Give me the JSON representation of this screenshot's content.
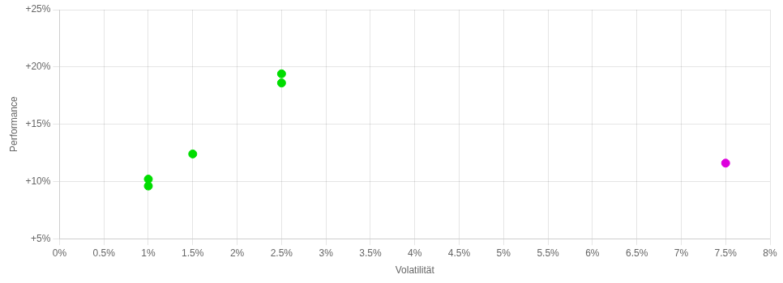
{
  "chart_data": {
    "type": "scatter",
    "x_label": "Volatilität",
    "y_label": "Performance",
    "xlim": [
      0.0,
      0.08
    ],
    "ylim": [
      0.05,
      0.25
    ],
    "xticks": [
      {
        "value": 0.0,
        "label": "0%"
      },
      {
        "value": 0.005,
        "label": "0.5%"
      },
      {
        "value": 0.01,
        "label": "1%"
      },
      {
        "value": 0.015,
        "label": "1.5%"
      },
      {
        "value": 0.02,
        "label": "2%"
      },
      {
        "value": 0.025,
        "label": "2.5%"
      },
      {
        "value": 0.03,
        "label": "3%"
      },
      {
        "value": 0.035,
        "label": "3.5%"
      },
      {
        "value": 0.04,
        "label": "4%"
      },
      {
        "value": 0.045,
        "label": "4.5%"
      },
      {
        "value": 0.05,
        "label": "5%"
      },
      {
        "value": 0.055,
        "label": "5.5%"
      },
      {
        "value": 0.06,
        "label": "6%"
      },
      {
        "value": 0.065,
        "label": "6.5%"
      },
      {
        "value": 0.07,
        "label": "7%"
      },
      {
        "value": 0.075,
        "label": "7.5%"
      },
      {
        "value": 0.08,
        "label": "8%"
      }
    ],
    "yticks": [
      {
        "value": 0.05,
        "label": "+5%"
      },
      {
        "value": 0.1,
        "label": "+10%"
      },
      {
        "value": 0.15,
        "label": "+15%"
      },
      {
        "value": 0.2,
        "label": "+20%"
      },
      {
        "value": 0.25,
        "label": "+25%"
      }
    ],
    "grid": true,
    "marker": "circle",
    "series": [
      {
        "color": "#00dd00",
        "values": [
          [
            0.01,
            0.102
          ],
          [
            0.01,
            0.096
          ],
          [
            0.015,
            0.124
          ],
          [
            0.025,
            0.194
          ],
          [
            0.025,
            0.186
          ]
        ]
      },
      {
        "color": "#dd00dd",
        "values": [
          [
            0.075,
            0.116
          ]
        ]
      }
    ]
  }
}
